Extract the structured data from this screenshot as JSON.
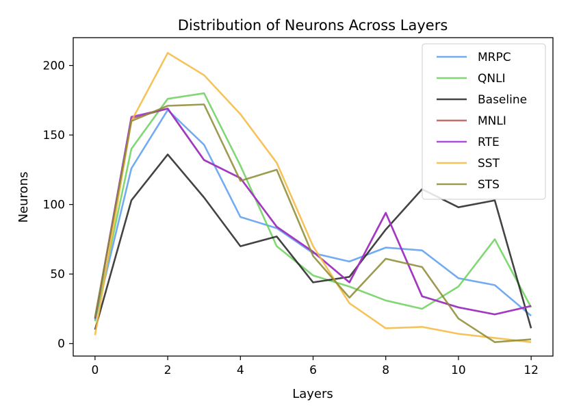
{
  "chart_data": {
    "type": "line",
    "title": "Distribution of Neurons Across Layers",
    "xlabel": "Layers",
    "ylabel": "Neurons",
    "x": [
      0,
      1,
      2,
      3,
      4,
      5,
      6,
      7,
      8,
      9,
      10,
      11,
      12
    ],
    "xlim": [
      -0.6,
      12.6
    ],
    "ylim": [
      -9,
      220
    ],
    "xticks": [
      0,
      2,
      4,
      6,
      8,
      10,
      12
    ],
    "yticks": [
      0,
      50,
      100,
      150,
      200
    ],
    "grid": false,
    "legend_position": "top-right",
    "series": [
      {
        "name": "MRPC",
        "color": "#5b9cf0",
        "values": [
          17,
          126,
          168,
          143,
          91,
          83,
          65,
          59,
          69,
          67,
          47,
          42,
          20
        ]
      },
      {
        "name": "QNLI",
        "color": "#6ad05a",
        "values": [
          16,
          140,
          176,
          180,
          128,
          70,
          49,
          41,
          31,
          25,
          41,
          75,
          26
        ]
      },
      {
        "name": "Baseline",
        "color": "#222222",
        "values": [
          10,
          103,
          136,
          105,
          70,
          77,
          44,
          48,
          82,
          111,
          98,
          103,
          11
        ]
      },
      {
        "name": "MNLI",
        "color": "#b5524f",
        "values": [
          18,
          162,
          169,
          132,
          119,
          84,
          66,
          44,
          94,
          34,
          26,
          21,
          27
        ]
      },
      {
        "name": "RTE",
        "color": "#9b30d5",
        "values": [
          18,
          163,
          169,
          132,
          119,
          84,
          66,
          44,
          94,
          34,
          26,
          21,
          27
        ]
      },
      {
        "name": "SST",
        "color": "#f5b83d",
        "values": [
          6,
          160,
          209,
          193,
          165,
          130,
          70,
          29,
          11,
          12,
          7,
          4,
          1
        ]
      },
      {
        "name": "STS",
        "color": "#8c8a30",
        "values": [
          19,
          160,
          171,
          172,
          117,
          125,
          63,
          33,
          61,
          55,
          18,
          1,
          3
        ]
      }
    ]
  }
}
